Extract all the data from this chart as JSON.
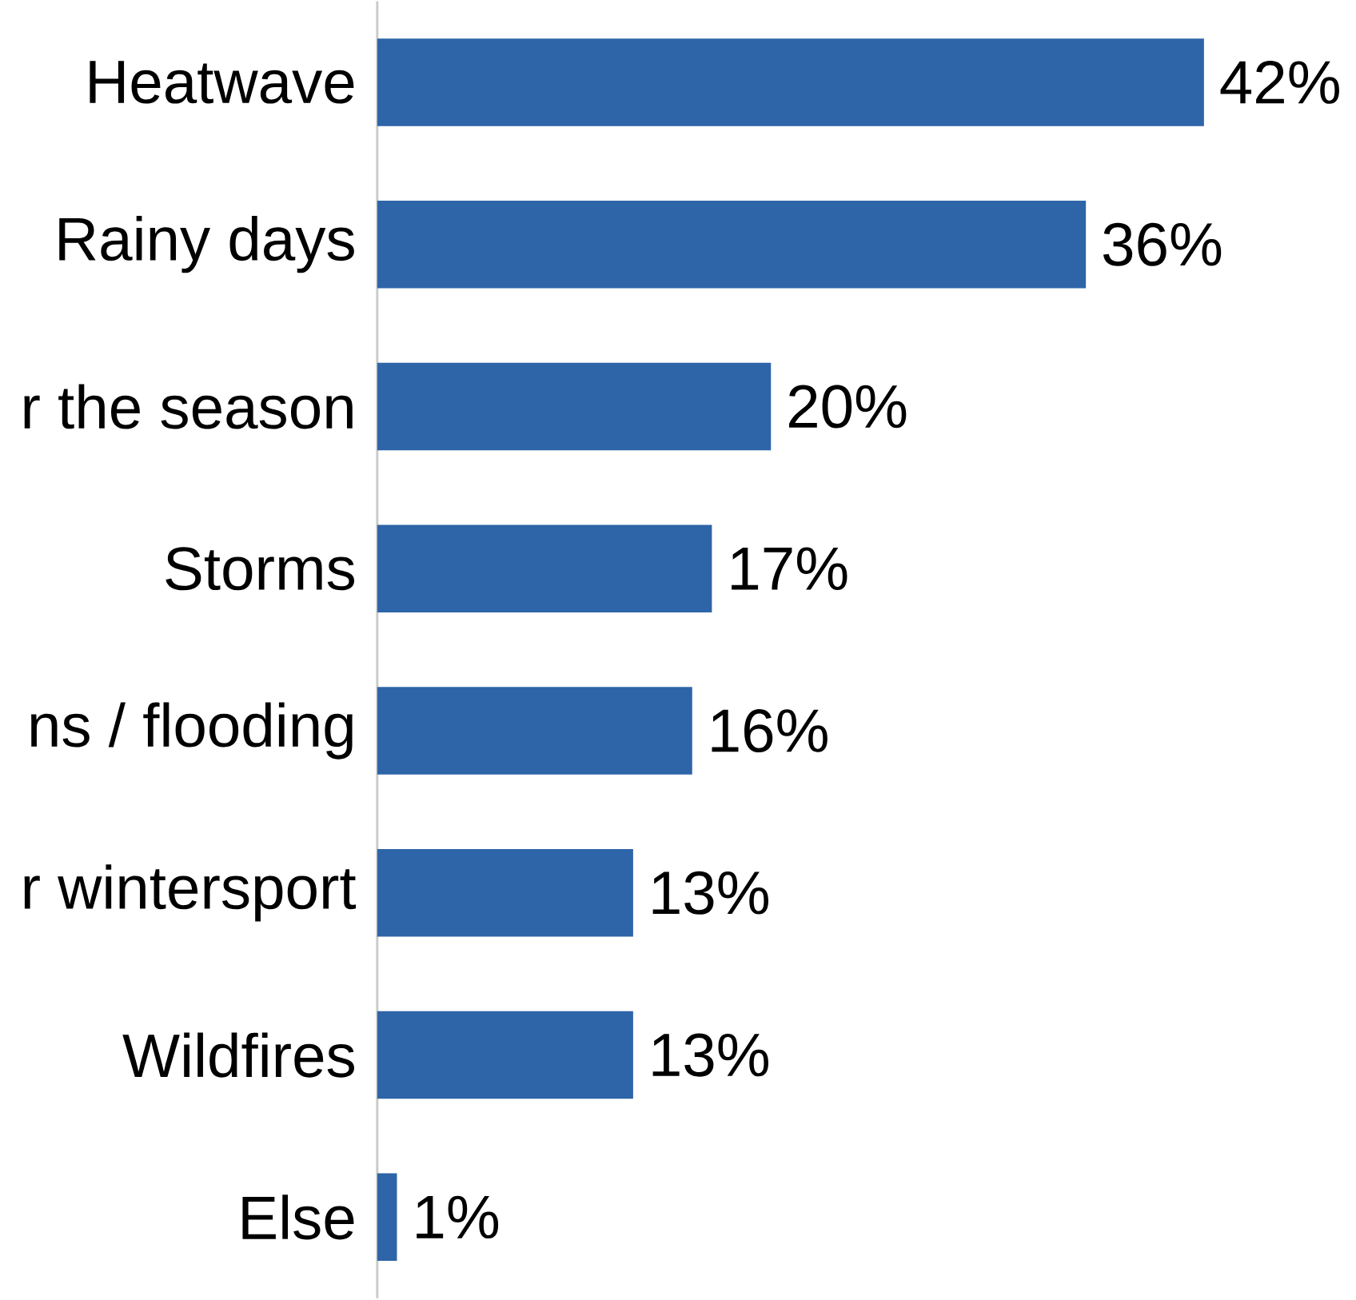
{
  "chart_data": {
    "type": "bar",
    "orientation": "horizontal",
    "color": "#2e64a8",
    "categories": [
      "Heatwave",
      "Rainy days",
      "r the season",
      "Storms",
      "ns / flooding",
      "r wintersport",
      "Wildfires",
      "Else"
    ],
    "values": [
      42,
      36,
      20,
      17,
      16,
      13,
      13,
      1
    ],
    "value_labels": [
      "42%",
      "36%",
      "20%",
      "17%",
      "16%",
      "13%",
      "13%",
      "1%"
    ]
  }
}
